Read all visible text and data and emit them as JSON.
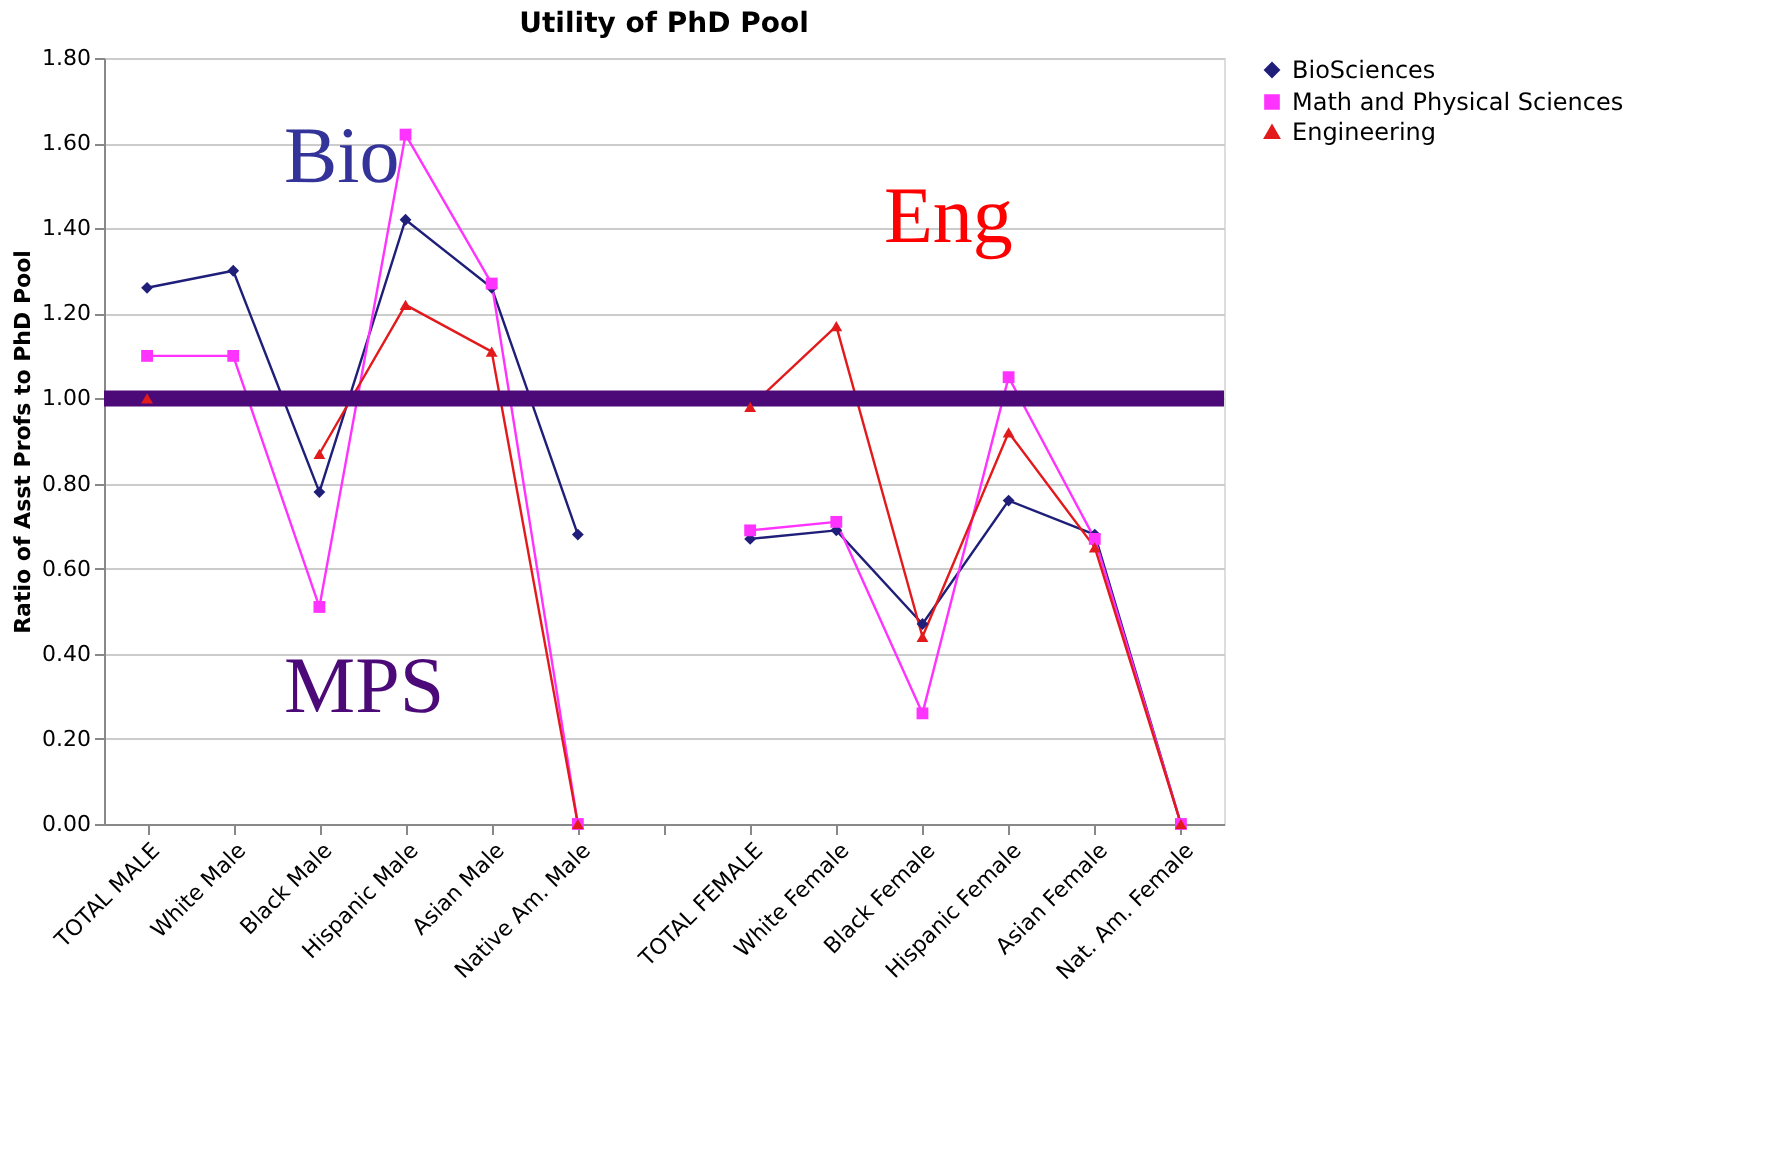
{
  "chart_data": {
    "type": "line",
    "title": "Utility of PhD Pool",
    "ylabel": "Ratio of Asst Profs to PhD Pool",
    "categories": [
      "TOTAL MALE",
      "White Male",
      "Black Male",
      "Hispanic Male",
      "Asian Male",
      "Native Am. Male",
      null,
      "TOTAL FEMALE",
      "White Female",
      "Black Female",
      "Hispanic Female",
      "Asian Female",
      "Nat. Am. Female"
    ],
    "series": [
      {
        "name": "BioSciences",
        "color": "#1f1f7a",
        "marker": "diamond",
        "values": [
          1.26,
          1.3,
          0.78,
          1.42,
          1.26,
          0.68,
          null,
          0.67,
          0.69,
          0.47,
          0.76,
          0.68,
          0.0
        ]
      },
      {
        "name": "Math and Physical Sciences",
        "color": "#ff33ff",
        "marker": "square",
        "values": [
          1.1,
          1.1,
          0.51,
          1.62,
          1.27,
          0.0,
          null,
          0.69,
          0.71,
          0.26,
          1.05,
          0.67,
          0.0
        ]
      },
      {
        "name": "Engineering",
        "color": "#e31a1c",
        "marker": "triangle",
        "values": [
          1.0,
          null,
          0.87,
          1.22,
          1.11,
          0.0,
          null,
          0.98,
          1.17,
          0.44,
          0.92,
          0.65,
          0.0
        ]
      }
    ],
    "ylim": [
      0,
      1.8
    ],
    "yticks": [
      {
        "value": 0,
        "label": "0.00"
      },
      {
        "value": 0.2,
        "label": "0.20"
      },
      {
        "value": 0.4,
        "label": "0.40"
      },
      {
        "value": 0.6,
        "label": "0.60"
      },
      {
        "value": 0.8,
        "label": "0.80"
      },
      {
        "value": 1.0,
        "label": "1.00"
      },
      {
        "value": 1.2,
        "label": "1.20"
      },
      {
        "value": 1.4,
        "label": "1.40"
      },
      {
        "value": 1.6,
        "label": "1.60"
      },
      {
        "value": 1.8,
        "label": "1.80"
      }
    ],
    "grid": "y",
    "legend": "right",
    "ref_lines": [
      {
        "axis": "y",
        "value": 1.0,
        "color": "#4b0a78"
      }
    ],
    "annotations": [
      "Bio",
      "MPS",
      "Eng"
    ]
  }
}
